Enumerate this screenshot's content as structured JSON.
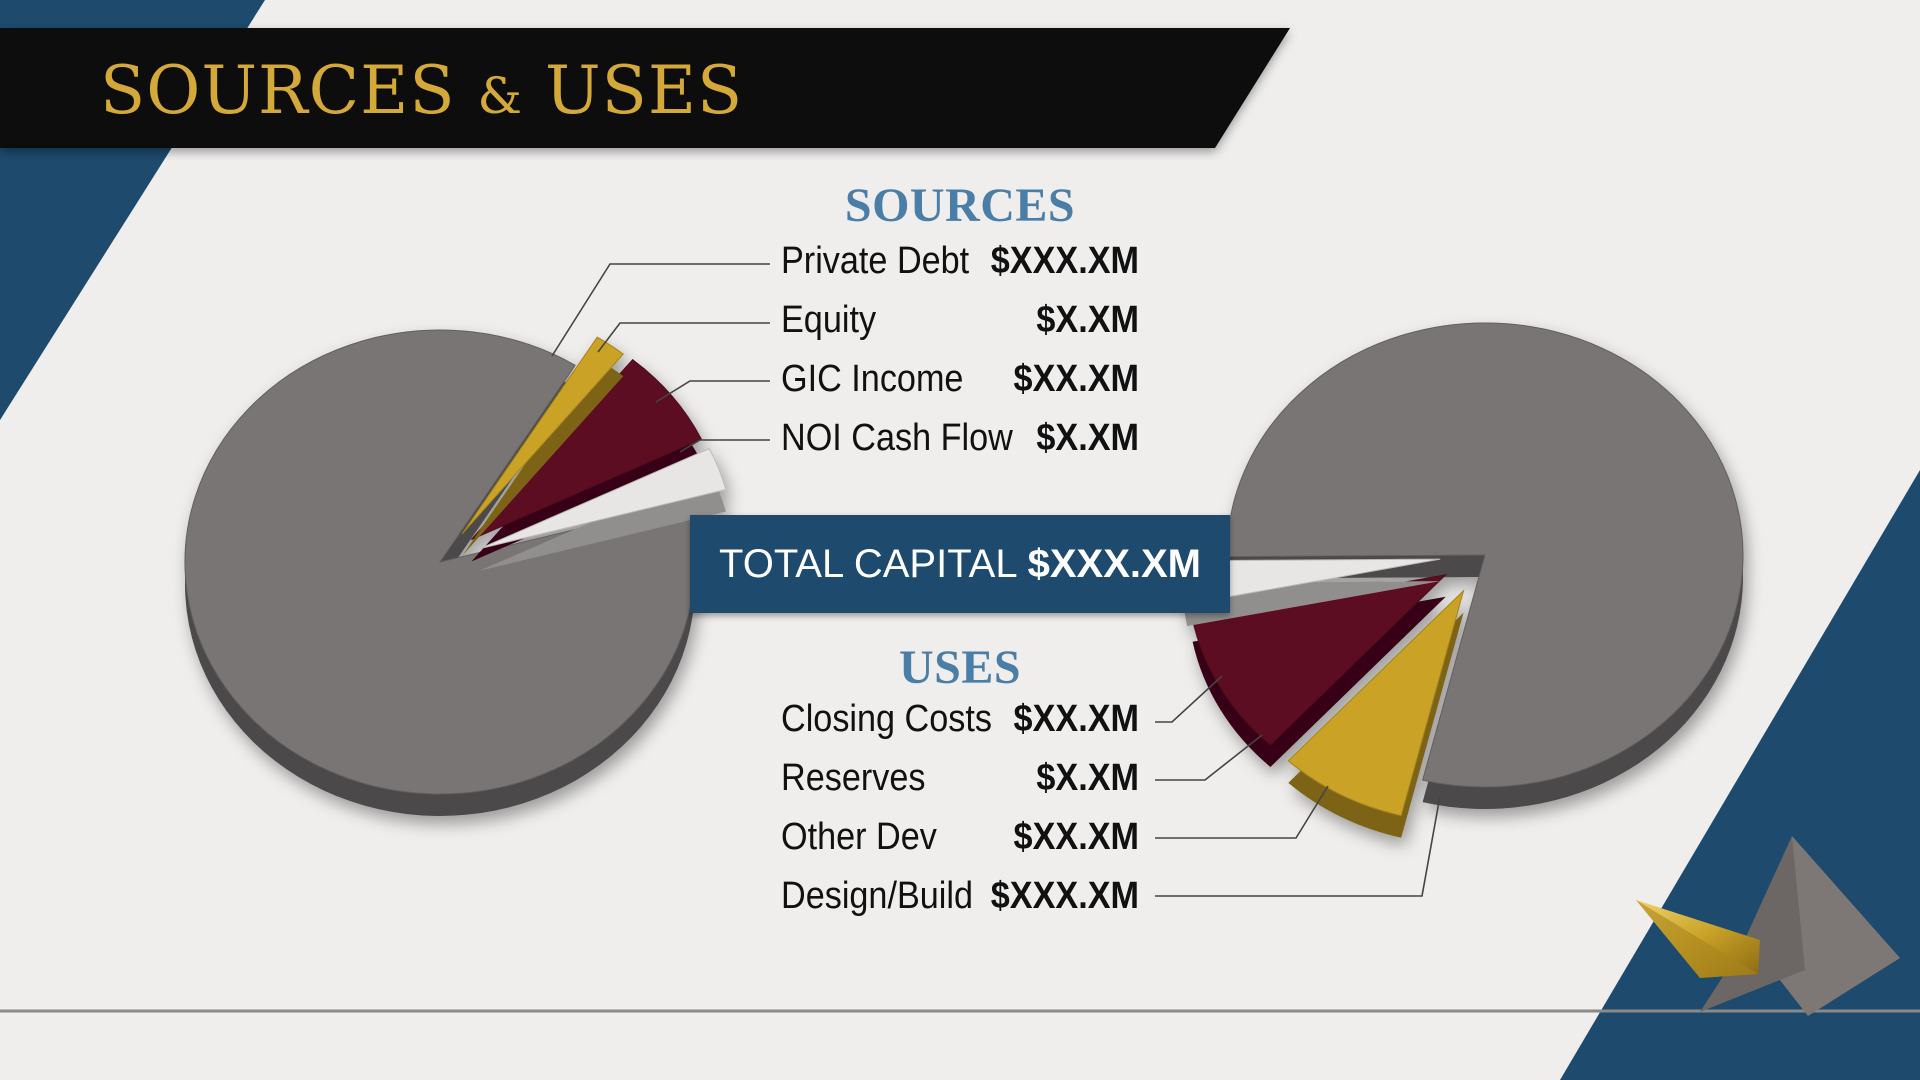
{
  "title": {
    "main": "SOURCES",
    "amp": "&",
    "tail": "USES"
  },
  "sources": {
    "heading": "SOURCES",
    "items": [
      {
        "label": "Private Debt",
        "value": "$XXX.XM"
      },
      {
        "label": "Equity",
        "value": "$X.XM"
      },
      {
        "label": "GIC Income",
        "value": "$XX.XM"
      },
      {
        "label": "NOI Cash Flow",
        "value": "$X.XM"
      }
    ]
  },
  "total": {
    "label": "TOTAL CAPITAL",
    "value": "$XXX.XM"
  },
  "uses": {
    "heading": "USES",
    "items": [
      {
        "label": "Closing Costs",
        "value": "$XX.XM"
      },
      {
        "label": "Reserves",
        "value": "$X.XM"
      },
      {
        "label": "Other Dev",
        "value": "$XX.XM"
      },
      {
        "label": "Design/Build",
        "value": "$XXX.XM"
      }
    ]
  },
  "colors": {
    "navy": "#1d4a6d",
    "gold": "#c9a227",
    "maroon": "#5c0a24",
    "gray": "#7a7574",
    "white_slice": "#e8e6e4",
    "heading_blue": "#4a7ea6"
  },
  "chart_data": [
    {
      "type": "pie",
      "title": "SOURCES",
      "categories": [
        "Private Debt",
        "Equity",
        "GIC Income",
        "NOI Cash Flow"
      ],
      "values": [
        88,
        2,
        7,
        3
      ]
    },
    {
      "type": "pie",
      "title": "USES",
      "categories": [
        "Closing Costs",
        "Reserves",
        "Other Dev",
        "Design/Build"
      ],
      "values": [
        3,
        10,
        8,
        79
      ]
    }
  ]
}
